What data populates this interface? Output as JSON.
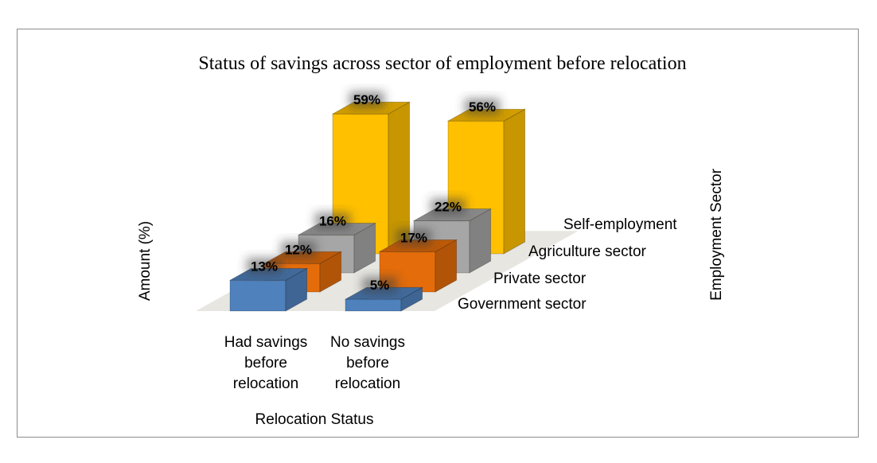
{
  "chart_data": {
    "type": "bar",
    "title": "Status of savings across sector of employment before relocation",
    "xlabel": "Relocation Status",
    "ylabel": "Amount (%)",
    "zlabel": "Employment Sector",
    "three_d": true,
    "categories": [
      "Had savings before relocation",
      "No savings before relocation"
    ],
    "category_label_lines": [
      [
        "Had savings",
        "before",
        "relocation"
      ],
      [
        "No savings",
        "before",
        "relocation"
      ]
    ],
    "series": [
      {
        "name": "Government sector",
        "values": [
          13,
          5
        ],
        "color": "#4f81bd"
      },
      {
        "name": "Private sector",
        "values": [
          12,
          17
        ],
        "color": "#e46c0a"
      },
      {
        "name": "Agriculture sector",
        "values": [
          16,
          22
        ],
        "color": "#a6a6a6"
      },
      {
        "name": "Self-employment",
        "values": [
          59,
          56
        ],
        "color": "#ffc000"
      }
    ],
    "value_suffix": "%",
    "grid": false,
    "floor_color": "#e7e6e1"
  }
}
